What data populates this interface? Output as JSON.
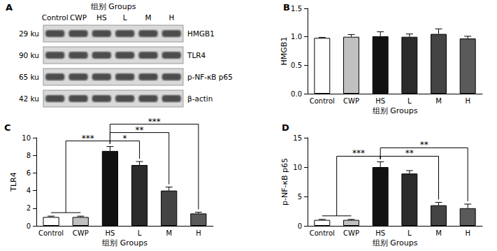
{
  "blot": {
    "panel": "A",
    "header": "组别 Groups",
    "lanes": [
      "Control",
      "CWP",
      "HS",
      "L",
      "M",
      "H"
    ],
    "rows": [
      {
        "size": "29 ku",
        "label": "HMGB1"
      },
      {
        "size": "90 ku",
        "label": "TLR4"
      },
      {
        "size": "65 ku",
        "label": "p-NF-κB p65"
      },
      {
        "size": "42 ku",
        "label": "β-actin"
      }
    ]
  },
  "chart_data": [
    {
      "panel": "B",
      "type": "bar",
      "ylabel": "HMGB1",
      "xlabel": "组别 Groups",
      "categories": [
        "Control",
        "CWP",
        "HS",
        "L",
        "M",
        "H"
      ],
      "values": [
        0.98,
        1.0,
        1.01,
        1.0,
        1.05,
        0.97
      ],
      "errors": [
        0.01,
        0.04,
        0.08,
        0.05,
        0.09,
        0.04
      ],
      "colors": [
        "#ffffff",
        "#c0c0c0",
        "#111111",
        "#2b2b2b",
        "#444444",
        "#5a5a5a"
      ],
      "ylim": [
        0,
        1.5
      ],
      "yticks": [
        {
          "value": 0,
          "label": "0.0"
        },
        {
          "value": 0.5,
          "label": "0.5"
        },
        {
          "value": 1,
          "label": "1.0"
        },
        {
          "value": 1.5,
          "label": "1.5"
        }
      ],
      "grid": false
    },
    {
      "panel": "C",
      "type": "bar",
      "ylabel": "TLR4",
      "xlabel": "组别 Groups",
      "categories": [
        "Control",
        "CWP",
        "HS",
        "L",
        "M",
        "H"
      ],
      "values": [
        1.0,
        1.0,
        8.5,
        6.9,
        4.0,
        1.4
      ],
      "errors": [
        0.1,
        0.1,
        0.5,
        0.4,
        0.4,
        0.15
      ],
      "colors": [
        "#ffffff",
        "#c0c0c0",
        "#111111",
        "#2b2b2b",
        "#444444",
        "#5a5a5a"
      ],
      "ylim": [
        0,
        10
      ],
      "yticks": [
        0,
        2,
        4,
        6,
        8,
        10
      ],
      "grid": false,
      "brackets": [
        {
          "from": [
            "Control",
            "CWP"
          ],
          "to": [
            "HS"
          ],
          "label": "***"
        },
        {
          "from": [
            "HS"
          ],
          "to": [
            "L"
          ],
          "label": "*"
        },
        {
          "from": [
            "HS"
          ],
          "to": [
            "M"
          ],
          "label": "**"
        },
        {
          "from": [
            "HS"
          ],
          "to": [
            "H"
          ],
          "label": "***"
        }
      ]
    },
    {
      "panel": "D",
      "type": "bar",
      "ylabel": "p-NF-κB p65",
      "xlabel": "组别 Groups",
      "categories": [
        "Control",
        "CWP",
        "HS",
        "L",
        "M",
        "H"
      ],
      "values": [
        1.0,
        1.0,
        10.0,
        8.9,
        3.5,
        3.0
      ],
      "errors": [
        0.1,
        0.1,
        0.9,
        0.5,
        0.5,
        0.7
      ],
      "colors": [
        "#ffffff",
        "#c0c0c0",
        "#111111",
        "#2b2b2b",
        "#444444",
        "#5a5a5a"
      ],
      "ylim": [
        0,
        15
      ],
      "yticks": [
        0,
        5,
        10,
        15
      ],
      "grid": false,
      "brackets": [
        {
          "from": [
            "Control",
            "CWP"
          ],
          "to": [
            "HS"
          ],
          "label": "***"
        },
        {
          "from": [
            "HS"
          ],
          "to": [
            "M"
          ],
          "label": "**"
        },
        {
          "from": [
            "HS"
          ],
          "to": [
            "H"
          ],
          "label": "**"
        }
      ]
    }
  ]
}
